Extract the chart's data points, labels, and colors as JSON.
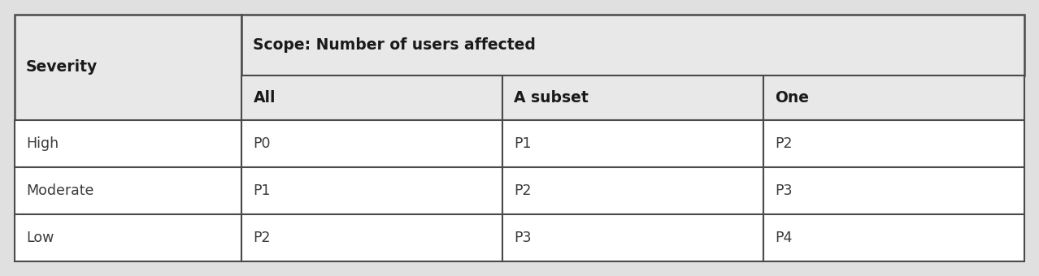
{
  "header_col": "Severity",
  "header_scope": "Scope: Number of users affected",
  "scope_subcols": [
    "All",
    "A subset",
    "One"
  ],
  "severity_rows": [
    "High",
    "Moderate",
    "Low"
  ],
  "table_data": [
    [
      "P0",
      "P1",
      "P2"
    ],
    [
      "P1",
      "P2",
      "P3"
    ],
    [
      "P2",
      "P3",
      "P4"
    ]
  ],
  "header_bg": "#e8e8e8",
  "body_bg": "#ffffff",
  "border_color": "#4a4a4a",
  "header_text_color": "#1a1a1a",
  "body_text_color": "#3a3a3a",
  "outer_bg": "#e0e0e0",
  "fig_width": 12.78,
  "fig_height": 3.4,
  "dpi": 100
}
